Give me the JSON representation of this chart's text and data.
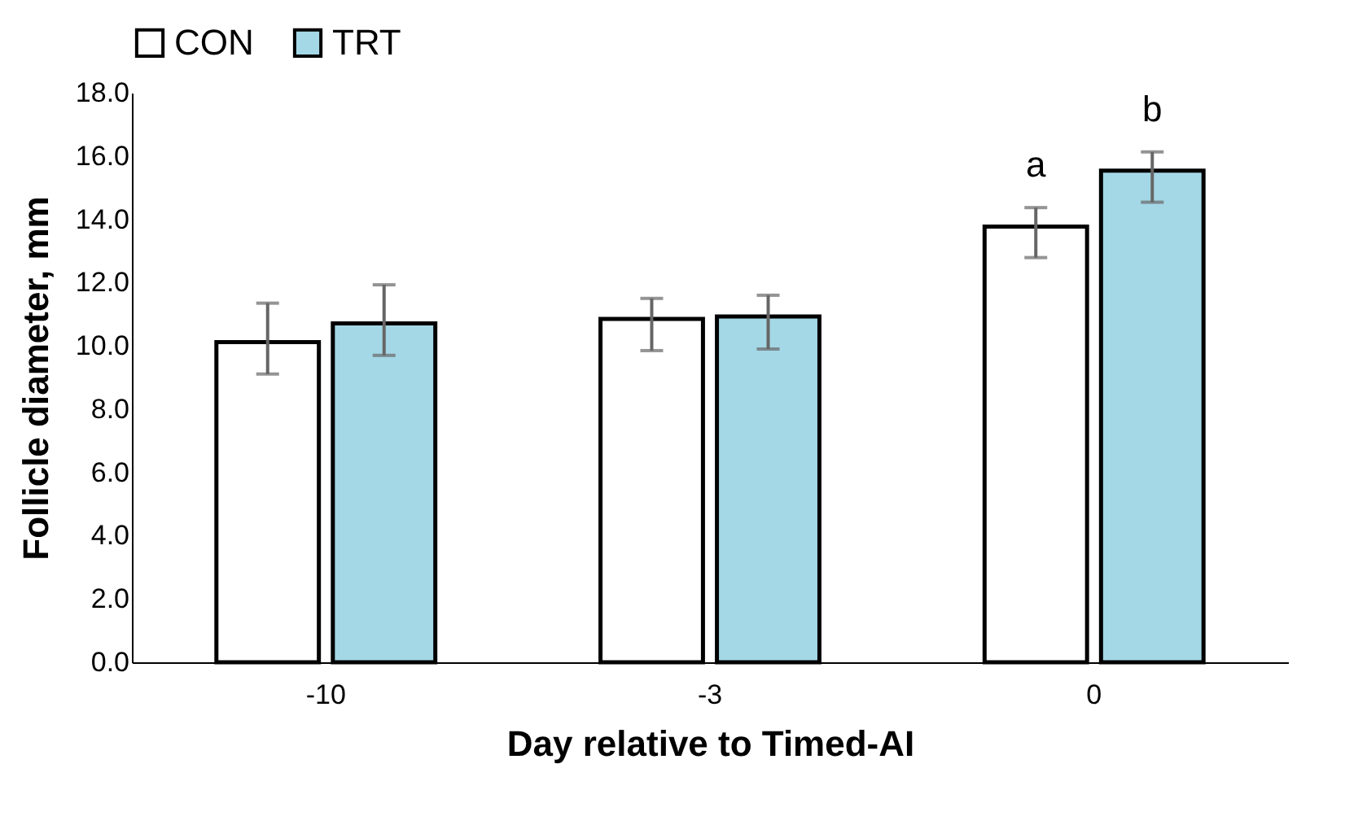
{
  "chart_data": {
    "type": "bar",
    "xlabel": "Day relative to Timed-AI",
    "ylabel": "Follicle diameter, mm",
    "categories": [
      "-10",
      "-3",
      "0"
    ],
    "series": [
      {
        "name": "CON",
        "color": "#ffffff",
        "values": [
          10.12,
          10.85,
          13.77
        ],
        "errors": [
          [
            9.11,
            11.35
          ],
          [
            9.85,
            11.5
          ],
          [
            12.79,
            14.37
          ]
        ]
      },
      {
        "name": "TRT",
        "color": "#a5d8e6",
        "values": [
          10.71,
          10.93,
          15.54
        ],
        "errors": [
          [
            9.7,
            11.93
          ],
          [
            9.9,
            11.6
          ],
          [
            14.54,
            16.13
          ]
        ]
      }
    ],
    "ylim": [
      0,
      18
    ],
    "yticks": [
      {
        "value": 0,
        "label": "0.0"
      },
      {
        "value": 2,
        "label": "2.0"
      },
      {
        "value": 4,
        "label": "4.0"
      },
      {
        "value": 6,
        "label": "6.0"
      },
      {
        "value": 8,
        "label": "8.0"
      },
      {
        "value": 10,
        "label": "10.0"
      },
      {
        "value": 12,
        "label": "12.0"
      },
      {
        "value": 14,
        "label": "14.0"
      },
      {
        "value": 16,
        "label": "16.0"
      },
      {
        "value": 18,
        "label": "18.0"
      }
    ],
    "annotations": [
      "a",
      "b"
    ],
    "legend": "top",
    "grid": false
  }
}
